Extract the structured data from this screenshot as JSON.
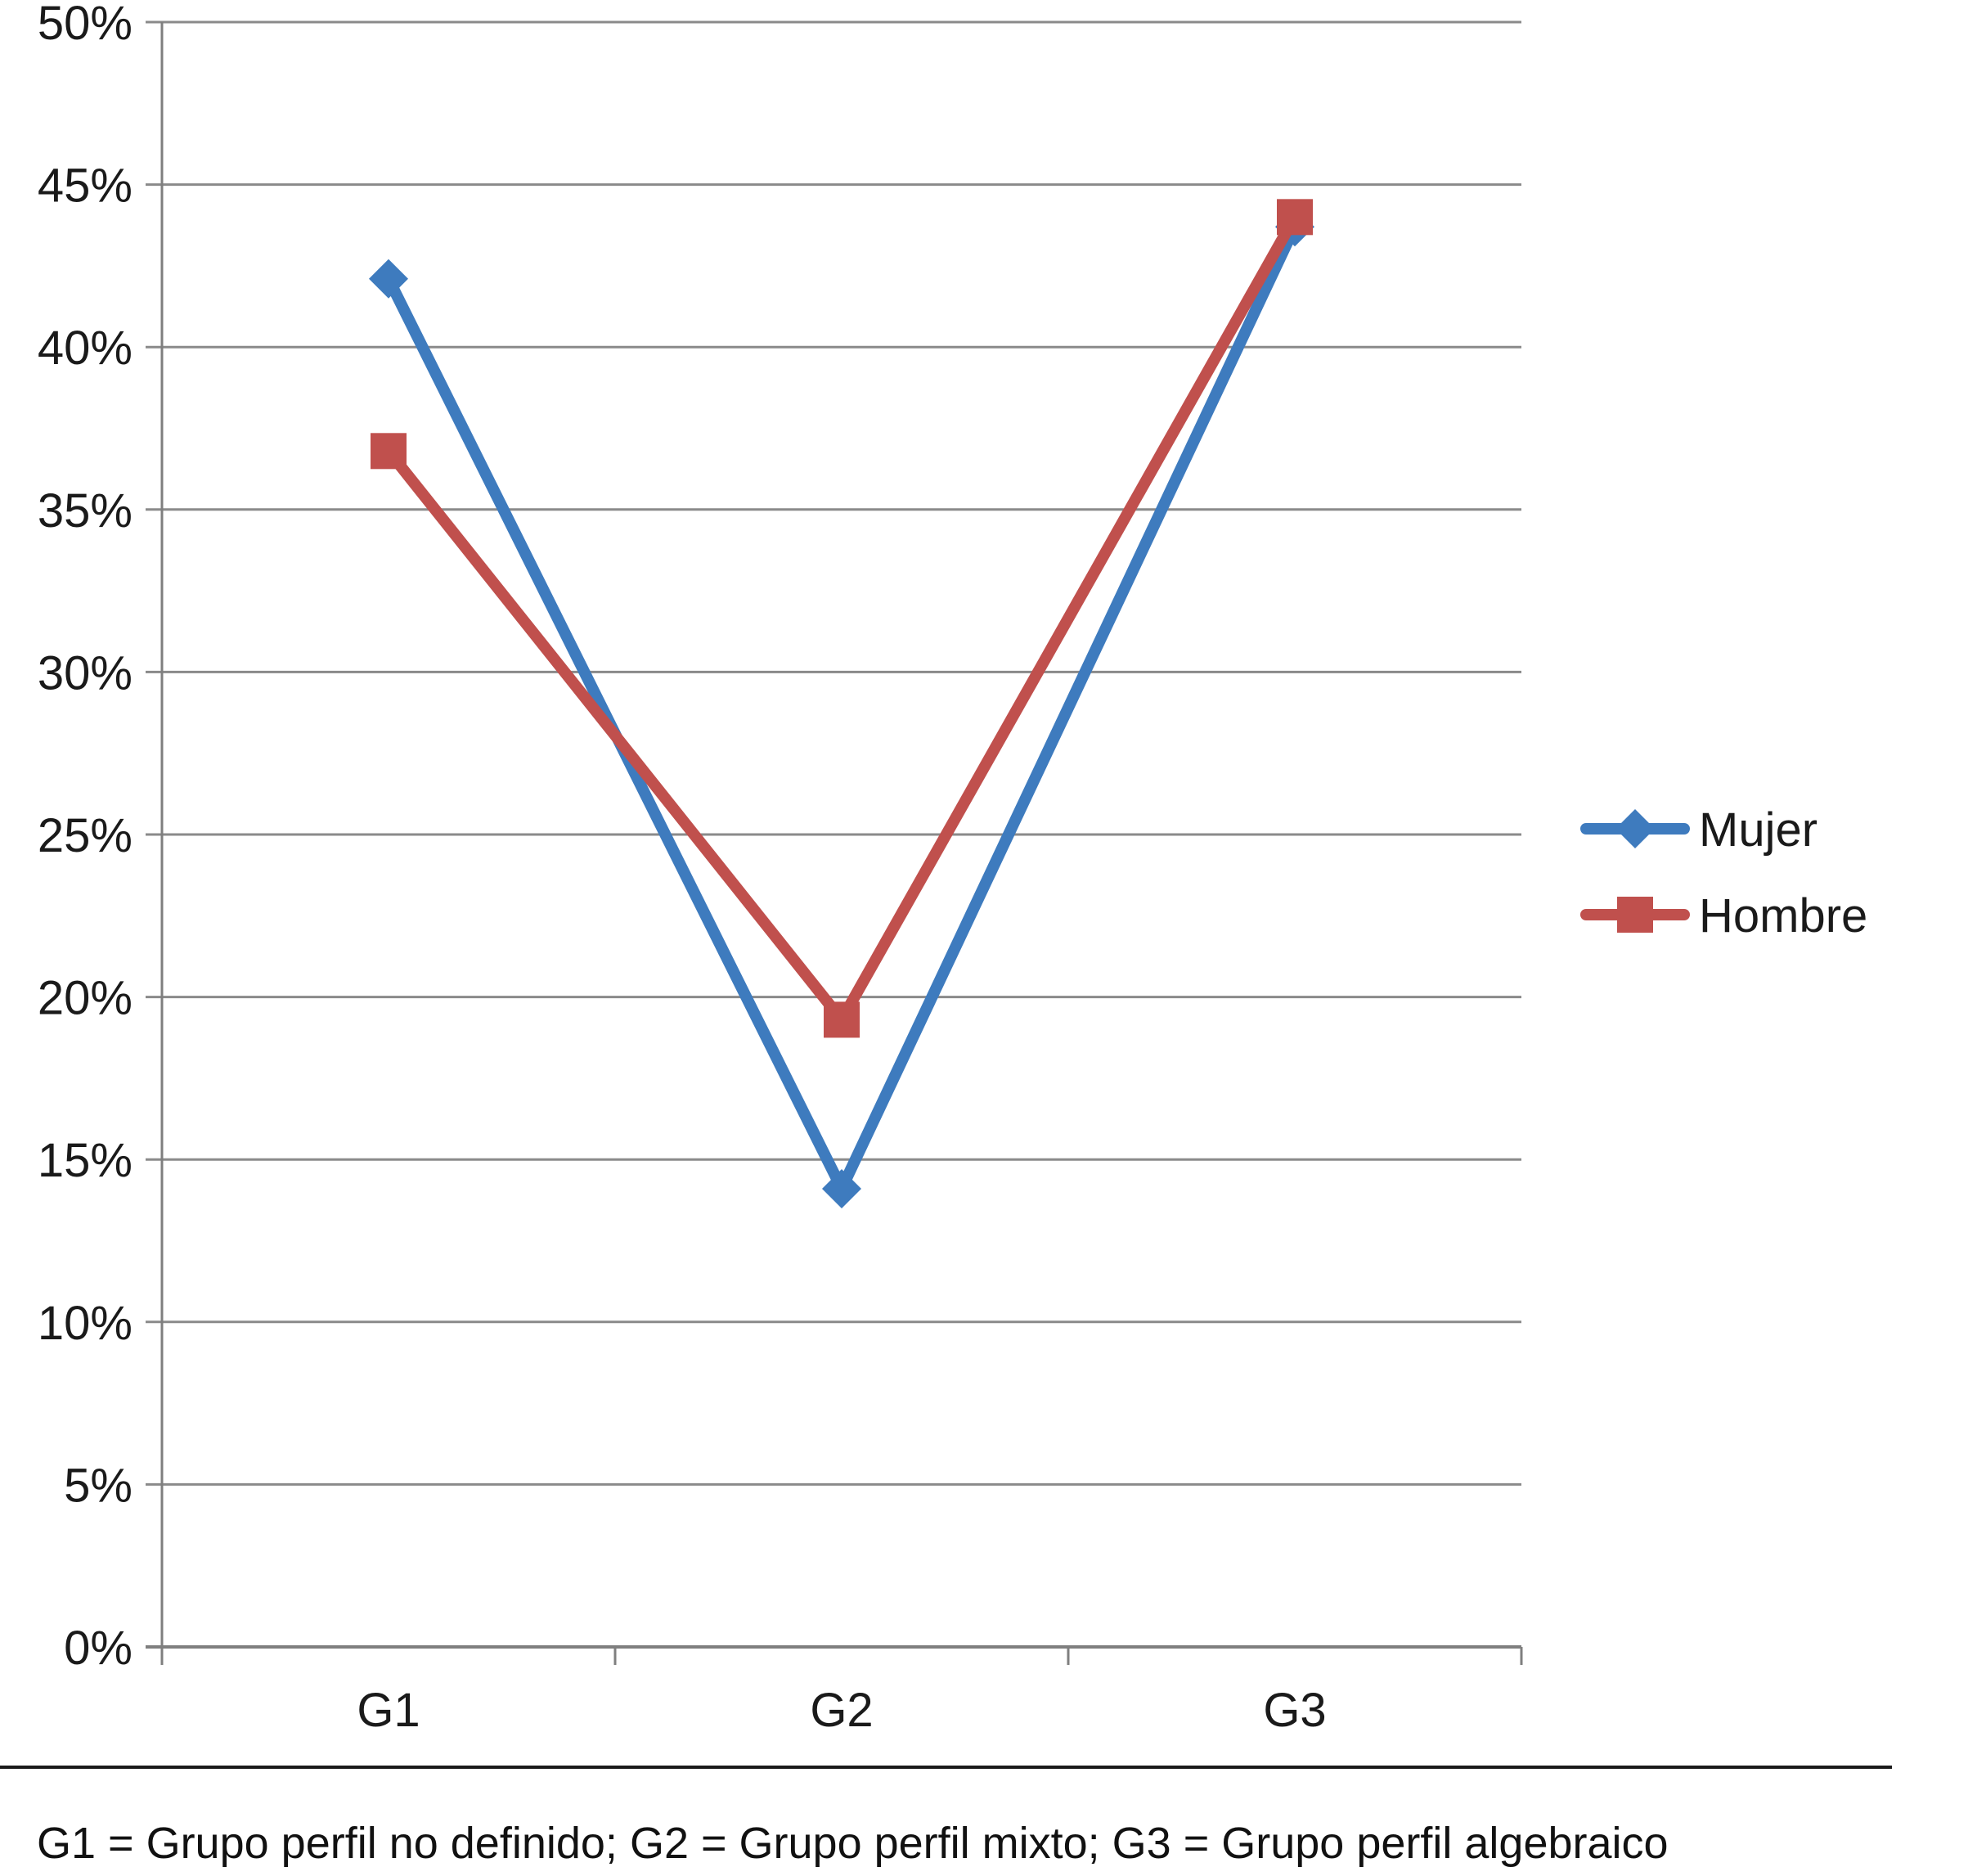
{
  "caption": "G1 = Grupo perfil no definido; G2 = Grupo perfil mixto; G3 = Grupo perfil algebraico",
  "chart_data": {
    "type": "line",
    "title": "",
    "xlabel": "",
    "ylabel": "",
    "unit": "%",
    "categories": [
      "G1",
      "G2",
      "G3"
    ],
    "series": [
      {
        "name": "Mujer",
        "marker": "diamond",
        "color": "#3E7BBE",
        "values": [
          42.1,
          14.1,
          43.7
        ]
      },
      {
        "name": "Hombre",
        "marker": "square",
        "color": "#C0504D",
        "values": [
          36.8,
          19.3,
          44.0
        ]
      }
    ],
    "ylim": [
      0,
      50
    ],
    "ytick_step": 5,
    "ytick_labels": [
      "0%",
      "5%",
      "10%",
      "15%",
      "20%",
      "25%",
      "30%",
      "35%",
      "40%",
      "45%",
      "50%"
    ],
    "grid": true,
    "grid_color": "#8A8A8A",
    "legend_position": "right",
    "legend": [
      "Mujer",
      "Hombre"
    ]
  }
}
